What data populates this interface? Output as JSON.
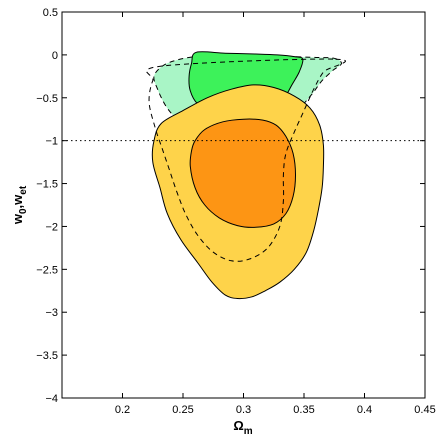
{
  "chart_data": {
    "type": "contour",
    "xlabel": {
      "main": "Ω",
      "sub": "m"
    },
    "ylabel": {
      "part1": "w",
      "sub1": "0",
      "sep": ",",
      "part2": "w",
      "sub2": "et"
    },
    "xlim": [
      0.15,
      0.45
    ],
    "ylim": [
      -4,
      0.5
    ],
    "xticks": [
      0.2,
      0.25,
      0.3,
      0.35,
      0.4,
      0.45
    ],
    "xtick_labels": [
      "0.2",
      "0.25",
      "0.3",
      "0.35",
      "0.4",
      "0.45"
    ],
    "yticks": [
      0.5,
      0,
      -0.5,
      -1,
      -1.5,
      -2,
      -2.5,
      -3,
      -3.5,
      -4
    ],
    "ytick_labels": [
      "0.5",
      "0",
      "−0.5",
      "−1",
      "−1.5",
      "−2",
      "−2.5",
      "−3",
      "−3.5",
      "−4"
    ],
    "reference_line": {
      "y": -1,
      "style": "dotted"
    },
    "colors": {
      "green_outer": "#a9f5c6",
      "green_inner": "#3df25a",
      "orange_outer": "#fed34a",
      "orange_inner": "#fd9514",
      "outline": "#000000"
    },
    "contours": [
      {
        "name": "green-outer-contour",
        "fill": "green_outer",
        "stroke": "dashed",
        "points": [
          [
            0.262,
            -0.02
          ],
          [
            0.28,
            -0.04
          ],
          [
            0.3,
            -0.03
          ],
          [
            0.32,
            -0.01
          ],
          [
            0.34,
            -0.02
          ],
          [
            0.36,
            -0.03
          ],
          [
            0.375,
            -0.04
          ],
          [
            0.381,
            -0.1
          ],
          [
            0.374,
            -0.18
          ],
          [
            0.365,
            -0.3
          ],
          [
            0.357,
            -0.45
          ],
          [
            0.348,
            -0.6
          ],
          [
            0.338,
            -0.77
          ],
          [
            0.33,
            -0.93
          ],
          [
            0.322,
            -1.1
          ],
          [
            0.31,
            -1.27
          ],
          [
            0.297,
            -1.33
          ],
          [
            0.283,
            -1.28
          ],
          [
            0.272,
            -1.15
          ],
          [
            0.263,
            -1.0
          ],
          [
            0.255,
            -0.87
          ],
          [
            0.245,
            -0.75
          ],
          [
            0.236,
            -0.6
          ],
          [
            0.229,
            -0.4
          ],
          [
            0.226,
            -0.25
          ],
          [
            0.233,
            -0.13
          ],
          [
            0.245,
            -0.06
          ]
        ]
      },
      {
        "name": "green-inner-contour",
        "fill": "green_inner",
        "stroke": "solid",
        "points": [
          [
            0.261,
            0.03
          ],
          [
            0.285,
            0.02
          ],
          [
            0.31,
            0.01
          ],
          [
            0.328,
            0.0
          ],
          [
            0.342,
            -0.02
          ],
          [
            0.349,
            -0.05
          ],
          [
            0.346,
            -0.2
          ],
          [
            0.34,
            -0.35
          ],
          [
            0.334,
            -0.5
          ],
          [
            0.327,
            -0.63
          ],
          [
            0.312,
            -0.7
          ],
          [
            0.293,
            -0.72
          ],
          [
            0.275,
            -0.68
          ],
          [
            0.262,
            -0.57
          ],
          [
            0.256,
            -0.42
          ],
          [
            0.255,
            -0.25
          ],
          [
            0.257,
            -0.1
          ]
        ]
      },
      {
        "name": "orange-outer-contour",
        "fill": "orange_outer",
        "stroke": "solid",
        "points": [
          [
            0.232,
            -0.8
          ],
          [
            0.25,
            -0.65
          ],
          [
            0.27,
            -0.5
          ],
          [
            0.29,
            -0.4
          ],
          [
            0.308,
            -0.35
          ],
          [
            0.325,
            -0.38
          ],
          [
            0.342,
            -0.48
          ],
          [
            0.355,
            -0.62
          ],
          [
            0.363,
            -0.82
          ],
          [
            0.366,
            -1.05
          ],
          [
            0.366,
            -1.3
          ],
          [
            0.365,
            -1.55
          ],
          [
            0.362,
            -1.8
          ],
          [
            0.358,
            -2.05
          ],
          [
            0.352,
            -2.3
          ],
          [
            0.342,
            -2.5
          ],
          [
            0.33,
            -2.65
          ],
          [
            0.318,
            -2.75
          ],
          [
            0.307,
            -2.82
          ],
          [
            0.295,
            -2.84
          ],
          [
            0.285,
            -2.8
          ],
          [
            0.274,
            -2.65
          ],
          [
            0.262,
            -2.42
          ],
          [
            0.248,
            -2.15
          ],
          [
            0.237,
            -1.85
          ],
          [
            0.231,
            -1.55
          ],
          [
            0.225,
            -1.25
          ],
          [
            0.226,
            -1.0
          ]
        ]
      },
      {
        "name": "orange-inner-contour",
        "fill": "orange_inner",
        "stroke": "solid",
        "points": [
          [
            0.26,
            -1.0
          ],
          [
            0.268,
            -0.87
          ],
          [
            0.283,
            -0.78
          ],
          [
            0.3,
            -0.75
          ],
          [
            0.316,
            -0.76
          ],
          [
            0.327,
            -0.82
          ],
          [
            0.335,
            -0.95
          ],
          [
            0.341,
            -1.15
          ],
          [
            0.343,
            -1.4
          ],
          [
            0.341,
            -1.65
          ],
          [
            0.335,
            -1.85
          ],
          [
            0.325,
            -1.97
          ],
          [
            0.31,
            -2.01
          ],
          [
            0.295,
            -1.99
          ],
          [
            0.28,
            -1.9
          ],
          [
            0.268,
            -1.75
          ],
          [
            0.26,
            -1.55
          ],
          [
            0.256,
            -1.3
          ],
          [
            0.257,
            -1.12
          ]
        ]
      },
      {
        "name": "dashed-confidence-contour",
        "fill": "none",
        "stroke": "dashed",
        "points": [
          [
            0.376,
            -0.05
          ],
          [
            0.366,
            -0.2
          ],
          [
            0.358,
            -0.4
          ],
          [
            0.35,
            -0.65
          ],
          [
            0.342,
            -0.9
          ],
          [
            0.335,
            -1.15
          ],
          [
            0.333,
            -1.4
          ],
          [
            0.333,
            -1.7
          ],
          [
            0.33,
            -2.0
          ],
          [
            0.32,
            -2.25
          ],
          [
            0.305,
            -2.38
          ],
          [
            0.29,
            -2.4
          ],
          [
            0.275,
            -2.3
          ],
          [
            0.262,
            -2.1
          ],
          [
            0.252,
            -1.85
          ],
          [
            0.245,
            -1.6
          ],
          [
            0.239,
            -1.35
          ],
          [
            0.233,
            -1.1
          ],
          [
            0.227,
            -0.85
          ],
          [
            0.222,
            -0.55
          ],
          [
            0.225,
            -0.3
          ],
          [
            0.233,
            -0.13
          ]
        ]
      }
    ]
  }
}
